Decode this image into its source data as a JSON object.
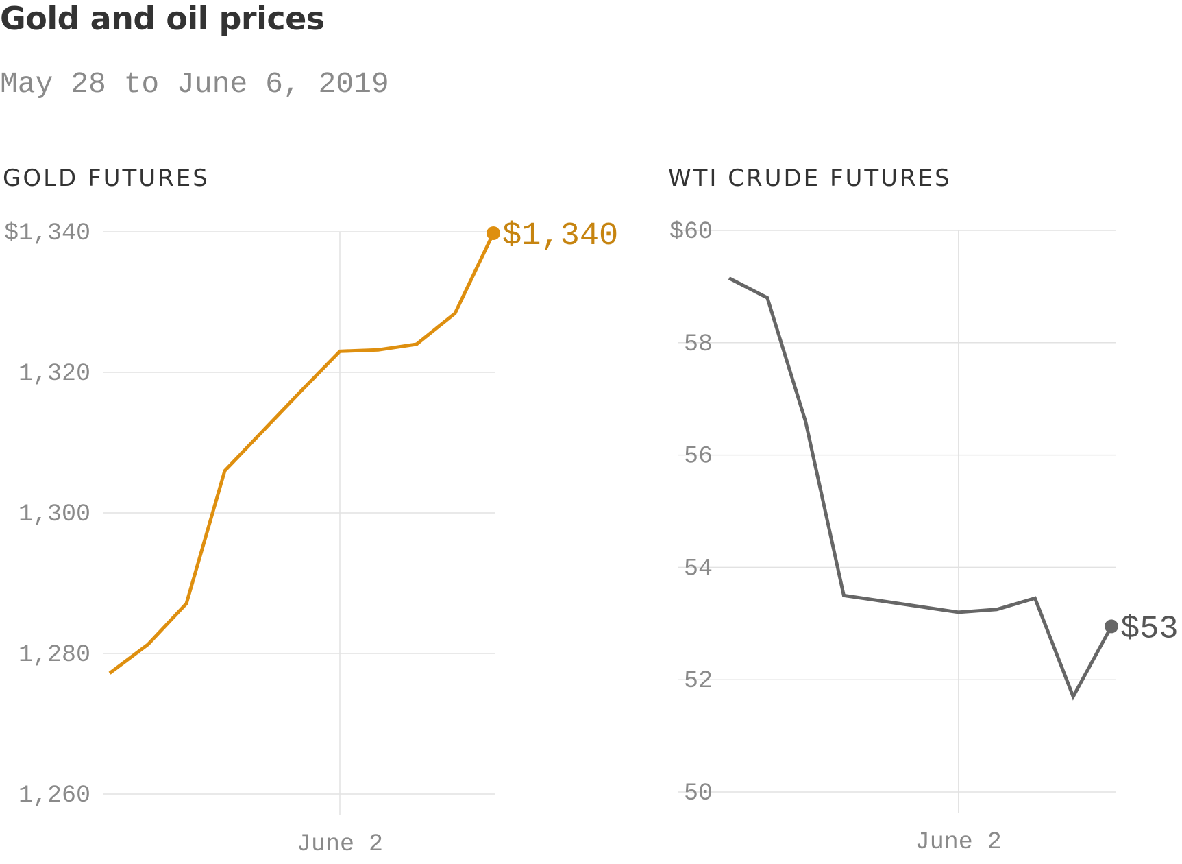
{
  "title": "Gold and oil prices",
  "subtitle": "May 28 to June 6, 2019",
  "chart_data": [
    {
      "type": "line",
      "title": "GOLD FUTURES",
      "color": "#DE8F0F",
      "label_color": "#C68410",
      "x": [
        "2019-05-27",
        "2019-05-28",
        "2019-05-29",
        "2019-05-30",
        "2019-05-31",
        "2019-06-01",
        "2019-06-02",
        "2019-06-03",
        "2019-06-04",
        "2019-06-05",
        "2019-06-06"
      ],
      "values": [
        1277.2,
        1281.3,
        1287.1,
        1306.0,
        1311.7,
        1317.4,
        1323.0,
        1323.2,
        1324.0,
        1328.4,
        1339.8
      ],
      "ylim": [
        1260,
        1340
      ],
      "yticks": [
        1260,
        1280,
        1300,
        1320,
        1340
      ],
      "ytick_labels": [
        "1,260",
        "1,280",
        "1,300",
        "1,320",
        "$1,340"
      ],
      "xtick_labels": [
        "June 2"
      ],
      "xtick_values": [
        "2019-06-02"
      ],
      "end_label": "$1,340",
      "grid": true
    },
    {
      "type": "line",
      "title": "WTI CRUDE FUTURES",
      "color": "#666666",
      "label_color": "#555555",
      "x": [
        "2019-05-27",
        "2019-05-28",
        "2019-05-29",
        "2019-05-30",
        "2019-05-31",
        "2019-06-01",
        "2019-06-02",
        "2019-06-03",
        "2019-06-04",
        "2019-06-05",
        "2019-06-06"
      ],
      "values": [
        59.15,
        58.8,
        56.6,
        53.5,
        53.4,
        53.3,
        53.2,
        53.25,
        53.45,
        51.7,
        52.95
      ],
      "ylim": [
        50,
        60
      ],
      "yticks": [
        50,
        52,
        54,
        56,
        58,
        60
      ],
      "ytick_labels": [
        "50",
        "52",
        "54",
        "56",
        "58",
        "$60"
      ],
      "xtick_labels": [
        "June 2"
      ],
      "xtick_values": [
        "2019-06-02"
      ],
      "end_label": "$53",
      "grid": true
    }
  ]
}
